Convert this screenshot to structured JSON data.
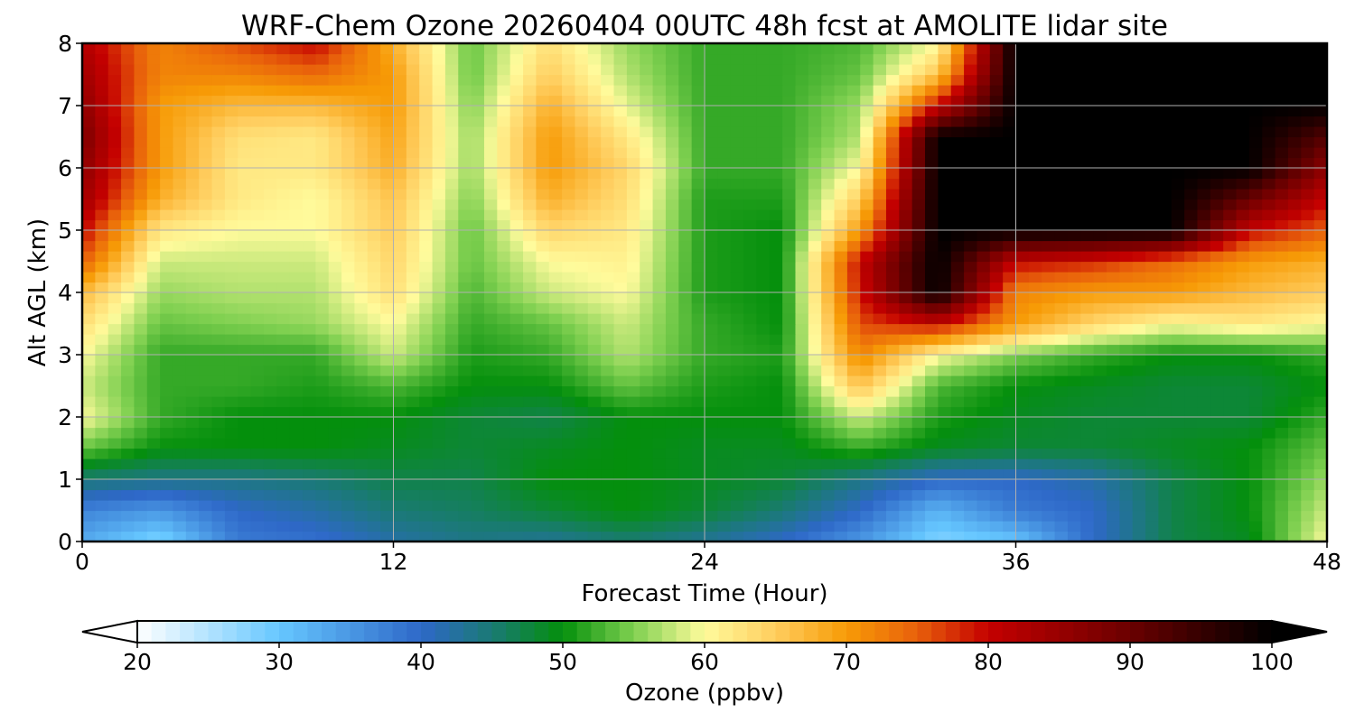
{
  "chart_data": {
    "type": "heatmap",
    "title": "WRF-Chem Ozone  20260404 00UTC 48h fcst at AMOLITE lidar site",
    "xlabel": "Forecast Time (Hour)",
    "ylabel": "Alt AGL (km)",
    "xlim": [
      0,
      48
    ],
    "ylim": [
      0,
      8
    ],
    "x_ticks": [
      "0",
      "12",
      "24",
      "36",
      "48"
    ],
    "y_ticks": [
      "0",
      "1",
      "2",
      "3",
      "4",
      "5",
      "6",
      "7",
      "8"
    ],
    "grid": true,
    "x": [
      0,
      3,
      6,
      9,
      12,
      15,
      18,
      21,
      24,
      27,
      30,
      33,
      36,
      39,
      42,
      45,
      48
    ],
    "y": [
      0,
      0.5,
      1,
      1.5,
      2,
      2.5,
      3,
      3.5,
      4,
      4.5,
      5,
      5.5,
      6,
      6.5,
      7,
      7.5,
      8
    ],
    "z_unit": "ppbv",
    "values": [
      [
        33,
        28,
        38,
        39,
        42,
        44,
        43,
        45,
        43,
        40,
        35,
        28,
        30,
        40,
        47,
        49,
        60
      ],
      [
        37,
        35,
        40,
        42,
        45,
        46,
        48,
        50,
        48,
        45,
        40,
        32,
        38,
        40,
        47,
        50,
        58
      ],
      [
        45,
        44,
        44,
        45,
        47,
        47,
        50,
        50,
        49,
        48,
        44,
        40,
        40,
        42,
        47,
        50,
        56
      ],
      [
        54,
        50,
        50,
        50,
        49,
        48,
        49,
        50,
        49,
        49,
        52,
        49,
        48,
        48,
        49,
        50,
        54
      ],
      [
        60,
        52,
        50,
        50,
        50,
        48,
        47,
        50,
        50,
        50,
        58,
        51,
        49,
        48,
        48,
        48,
        52
      ],
      [
        58,
        52,
        52,
        51,
        53,
        50,
        50,
        54,
        51,
        50,
        66,
        53,
        50,
        49,
        48,
        48,
        50
      ],
      [
        60,
        52,
        52,
        52,
        58,
        51,
        52,
        57,
        52,
        51,
        72,
        60,
        55,
        52,
        50,
        50,
        52
      ],
      [
        63,
        54,
        55,
        56,
        60,
        52,
        54,
        58,
        52,
        50,
        76,
        80,
        70,
        64,
        60,
        62,
        60
      ],
      [
        67,
        56,
        57,
        57,
        63,
        53,
        58,
        60,
        51,
        50,
        79,
        100,
        72,
        70,
        70,
        67,
        65
      ],
      [
        75,
        58,
        58,
        58,
        64,
        54,
        60,
        61,
        51,
        50,
        80,
        100,
        80,
        78,
        74,
        70,
        68
      ],
      [
        80,
        62,
        60,
        60,
        65,
        54,
        64,
        62,
        51,
        50,
        70,
        100,
        100,
        100,
        100,
        80,
        75
      ],
      [
        84,
        68,
        62,
        60,
        66,
        55,
        68,
        63,
        51,
        51,
        65,
        100,
        100,
        100,
        100,
        90,
        80
      ],
      [
        86,
        70,
        62,
        62,
        68,
        56,
        70,
        64,
        52,
        52,
        60,
        100,
        100,
        100,
        100,
        100,
        86
      ],
      [
        88,
        70,
        63,
        62,
        69,
        56,
        70,
        62,
        52,
        52,
        57,
        100,
        100,
        100,
        100,
        100,
        92
      ],
      [
        86,
        70,
        67,
        67,
        70,
        55,
        68,
        59,
        52,
        52,
        56,
        80,
        100,
        100,
        100,
        100,
        100
      ],
      [
        84,
        72,
        72,
        74,
        70,
        54,
        65,
        57,
        52,
        52,
        54,
        66,
        100,
        100,
        100,
        100,
        100
      ],
      [
        82,
        72,
        76,
        80,
        68,
        54,
        63,
        56,
        52,
        52,
        53,
        60,
        100,
        100,
        100,
        100,
        100
      ]
    ],
    "colorbar": {
      "label": "Ozone  (ppbv)",
      "min": 20,
      "max": 100,
      "tick_labels": [
        "20",
        "30",
        "40",
        "50",
        "60",
        "70",
        "80",
        "90",
        "100"
      ],
      "extend": "both",
      "stops": [
        {
          "v": 20,
          "c": "#ffffff"
        },
        {
          "v": 30,
          "c": "#66c7ff"
        },
        {
          "v": 40,
          "c": "#2e68c8"
        },
        {
          "v": 45,
          "c": "#1a7a74"
        },
        {
          "v": 50,
          "c": "#048f0c"
        },
        {
          "v": 55,
          "c": "#7fd050"
        },
        {
          "v": 60,
          "c": "#fffb9c"
        },
        {
          "v": 65,
          "c": "#ffcd5e"
        },
        {
          "v": 70,
          "c": "#f79b06"
        },
        {
          "v": 75,
          "c": "#e8600b"
        },
        {
          "v": 80,
          "c": "#c40000"
        },
        {
          "v": 90,
          "c": "#6a0000"
        },
        {
          "v": 100,
          "c": "#000000"
        }
      ]
    }
  }
}
